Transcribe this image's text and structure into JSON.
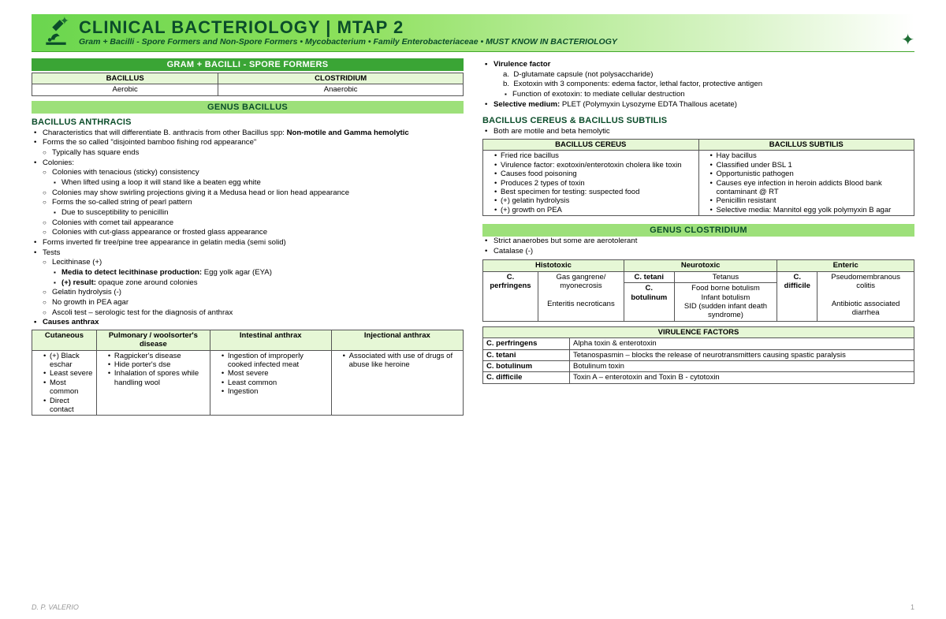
{
  "banner": {
    "title": "CLINICAL BACTERIOLOGY | MTAP 2",
    "subtitle": "Gram + Bacilli - Spore Formers and Non-Spore Formers • Mycobacterium • Family Enterobacteriaceae • MUST KNOW IN BACTERIOLOGY"
  },
  "bars": {
    "spore_formers": "GRAM + BACILLI - SPORE FORMERS",
    "genus_bacillus": "GENUS BACILLUS",
    "genus_clostridium": "GENUS CLOSTRIDIUM"
  },
  "spore_table": {
    "h1": "BACILLUS",
    "h2": "CLOSTRIDIUM",
    "c1": "Aerobic",
    "c2": "Anaerobic"
  },
  "anthracis": {
    "hdr": "BACILLUS ANTHRACIS",
    "li1a": "Characteristics that will differentiate B. anthracis from other Bacillus spp: ",
    "li1b": "Non-motile and Gamma hemolytic",
    "li2": "Forms the so called \"disjointed bamboo fishing rod appearance\"",
    "li2a": "Typically has square ends",
    "li3": "Colonies:",
    "li3a": "Colonies with tenacious (sticky) consistency",
    "li3a1": "When lifted using a loop it will stand like a beaten egg white",
    "li3b": "Colonies may show swirling projections giving it a Medusa head or lion head appearance",
    "li3c": "Forms the so-called string of pearl pattern",
    "li3c1": "Due to susceptibility to penicillin",
    "li3d": "Colonies with comet tail appearance",
    "li3e": "Colonies with cut-glass appearance or frosted glass appearance",
    "li4": "Forms inverted fir tree/pine tree appearance in gelatin media (semi solid)",
    "li5": "Tests",
    "li5a": "Lecithinase (+)",
    "li5a1a": "Media to detect lecithinase production: ",
    "li5a1b": "Egg yolk agar (EYA)",
    "li5a2a": "(+) result: ",
    "li5a2b": "opaque zone around colonies",
    "li5b": "Gelatin hydrolysis (-)",
    "li5c": "No growth in PEA agar",
    "li5d": "Ascoli test – serologic test for the diagnosis of anthrax",
    "li6": "Causes anthrax"
  },
  "anthrax_table": {
    "h1": "Cutaneous",
    "h2": "Pulmonary / woolsorter's disease",
    "h3": "Intestinal anthrax",
    "h4": "Injectional anthrax",
    "c1": [
      "(+) Black eschar",
      "Least severe",
      "Most common",
      "Direct contact"
    ],
    "c2": [
      "Ragpicker's disease",
      "Hide porter's dse",
      "Inhalation of spores while handling wool"
    ],
    "c3": [
      "Ingestion of improperly cooked infected meat",
      "Most severe",
      "Least common",
      "Ingestion"
    ],
    "c4": [
      "Associated with use of drugs of abuse like heroine"
    ]
  },
  "virulence_anth": {
    "li1": "Virulence factor",
    "a": "D-glutamate capsule (not polysaccharide)",
    "b": "Exotoxin with 3 components: edema factor, lethal factor, protective antigen",
    "b1": "Function of exotoxin: to mediate cellular destruction",
    "li2a": "Selective medium: ",
    "li2b": "PLET (Polymyxin Lysozyme EDTA Thallous acetate)"
  },
  "cereus_subtilis": {
    "hdr": "BACILLUS CEREUS & BACILLUS SUBTILIS",
    "li1": "Both are motile and beta hemolytic",
    "h1": "BACILLUS CEREUS",
    "h2": "BACILLUS SUBTILIS",
    "c1": [
      "Fried rice bacillus",
      "Virulence factor: exotoxin/enterotoxin cholera like toxin",
      "Causes food poisoning",
      "Produces 2 types of toxin",
      "Best specimen for testing: suspected food",
      "(+) gelatin hydrolysis",
      "(+) growth on PEA"
    ],
    "c2": [
      "Hay bacillus",
      "Classified under BSL 1",
      "Opportunistic pathogen",
      "Causes eye infection in heroin addicts Blood bank contaminant @ RT",
      "Penicillin resistant",
      "Selective media: Mannitol egg yolk polymyxin B agar"
    ]
  },
  "clostridium_intro": {
    "li1": "Strict anaerobes but some are aerotolerant",
    "li2": "Catalase (-)"
  },
  "clost_class": {
    "h1": "Histotoxic",
    "h2": "Neurotoxic",
    "h3": "Enteric",
    "r1c1": "C. perfringens",
    "r1c2": "Gas gangrene/ myonecrosis\n\nEnteritis necroticans",
    "r1c3": "C. tetani",
    "r1c4": "Tetanus",
    "r2c3": "C. botulinum",
    "r2c4": "Food borne botulism\nInfant botulism\nSID (sudden infant death syndrome)",
    "r1c5": "C. difficile",
    "r1c6": "Pseudomembranous colitis\n\nAntibiotic associated diarrhea"
  },
  "vf_table": {
    "hdr": "VIRULENCE FACTORS",
    "rows": [
      [
        "C. perfringens",
        "Alpha toxin & enterotoxin"
      ],
      [
        "C. tetani",
        "Tetanospasmin – blocks the release of neurotransmitters causing spastic paralysis"
      ],
      [
        "C. botulinum",
        "Botulinum toxin"
      ],
      [
        "C. difficile",
        "Toxin A – enterotoxin and Toxin B - cytotoxin"
      ]
    ]
  },
  "footer": {
    "author": "D. P. VALERIO",
    "page": "1"
  }
}
